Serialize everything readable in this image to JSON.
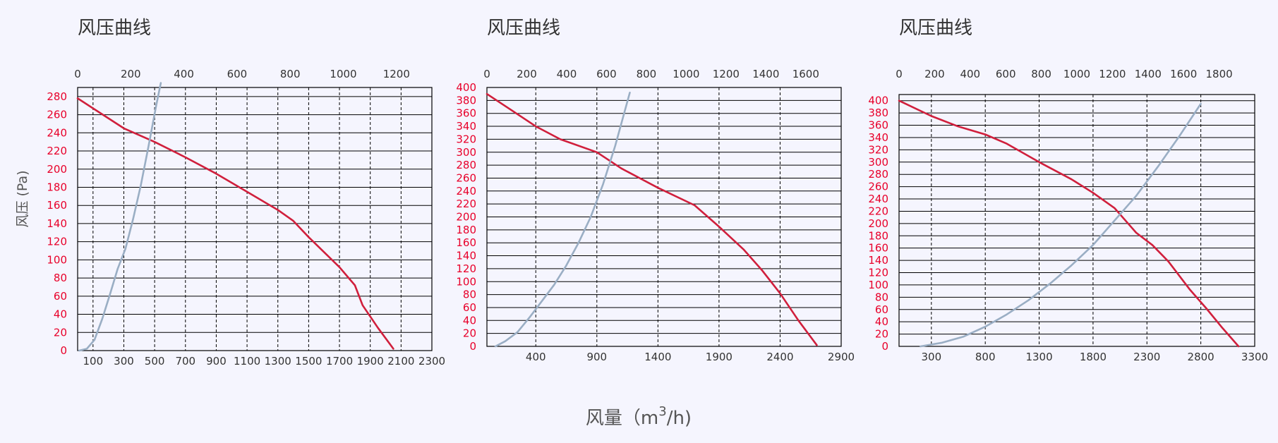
{
  "colors": {
    "background": "#f5f5fe",
    "pressure_curve": "#d01f3c",
    "system_curve": "#9aaec4",
    "y_ticks": "#e8002a",
    "grid": "#000000",
    "text": "#333333"
  },
  "y_axis_label": "风压 (Pa)",
  "x_axis_label": "风量（m",
  "x_axis_label_sup": "3",
  "x_axis_label_tail": "/h)",
  "chart_data": [
    {
      "type": "line",
      "title": "风压曲线",
      "ylabel": "风压 (Pa)",
      "xlabel": "风量（m3/h)",
      "ylim": [
        0,
        290
      ],
      "y_ticks": [
        0,
        20,
        40,
        60,
        80,
        100,
        120,
        140,
        160,
        180,
        200,
        220,
        240,
        260,
        280
      ],
      "bottom_xlim": [
        0,
        2300
      ],
      "bottom_ticks": [
        "100",
        "300",
        "500",
        "700",
        "900",
        "1100",
        "1300",
        "1500",
        "1700",
        "1900",
        "2100",
        "2300"
      ],
      "bottom_tick_values": [
        100,
        300,
        500,
        700,
        900,
        1100,
        1300,
        1500,
        1700,
        1900,
        2100,
        2300
      ],
      "top_ticks": [
        "0",
        "200",
        "400",
        "600",
        "800",
        "1000",
        "1200"
      ],
      "top_tick_values": [
        0,
        200,
        400,
        600,
        800,
        1000,
        1200
      ],
      "vertical_dashed_gridlines": [
        100,
        300,
        500,
        700,
        900,
        1100,
        1300,
        1500,
        1700,
        1900,
        2100
      ],
      "grid": true,
      "series": [
        {
          "role": "fan-pressure-curve",
          "x": [
            0,
            300,
            500,
            700,
            900,
            1100,
            1300,
            1400,
            1500,
            1700,
            1800,
            1850,
            1950,
            2050
          ],
          "y": [
            278,
            245,
            230,
            213,
            195,
            175,
            155,
            143,
            125,
            92,
            72,
            50,
            25,
            2
          ]
        },
        {
          "role": "system-resistance-curve",
          "x": [
            10,
            60,
            110,
            160,
            210,
            260,
            310,
            360,
            410,
            460,
            510,
            540
          ],
          "y": [
            0,
            2,
            12,
            35,
            62,
            90,
            112,
            145,
            182,
            225,
            270,
            295
          ]
        }
      ]
    },
    {
      "type": "line",
      "title": "风压曲线",
      "ylabel": "风压 (Pa)",
      "xlabel": "风量（m3/h)",
      "ylim": [
        0,
        400
      ],
      "y_ticks": [
        0,
        20,
        40,
        60,
        80,
        100,
        120,
        140,
        160,
        180,
        200,
        220,
        240,
        260,
        280,
        300,
        320,
        340,
        360,
        380,
        400
      ],
      "bottom_xlim": [
        0,
        2900
      ],
      "bottom_ticks": [
        "400",
        "900",
        "1400",
        "1900",
        "2400",
        "2900"
      ],
      "bottom_tick_values": [
        400,
        900,
        1400,
        1900,
        2400,
        2900
      ],
      "top_ticks": [
        "0",
        "200",
        "400",
        "600",
        "800",
        "1000",
        "1200",
        "1400",
        "1600"
      ],
      "top_tick_values": [
        0,
        200,
        400,
        600,
        800,
        1000,
        1200,
        1400,
        1600
      ],
      "vertical_dashed_gridlines": [
        400,
        900,
        1400,
        1900,
        2400
      ],
      "grid": true,
      "series": [
        {
          "role": "fan-pressure-curve",
          "x": [
            0,
            200,
            400,
            600,
            900,
            1100,
            1400,
            1700,
            1900,
            2100,
            2250,
            2400,
            2550,
            2700
          ],
          "y": [
            390,
            365,
            340,
            320,
            300,
            275,
            245,
            218,
            185,
            150,
            118,
            82,
            40,
            2
          ]
        },
        {
          "role": "system-resistance-curve",
          "x": [
            70,
            150,
            250,
            350,
            450,
            550,
            650,
            750,
            850,
            950,
            1050,
            1170
          ],
          "y": [
            0,
            8,
            22,
            45,
            70,
            95,
            125,
            160,
            200,
            250,
            310,
            392
          ]
        }
      ]
    },
    {
      "type": "line",
      "title": "风压曲线",
      "ylabel": "风压 (Pa)",
      "xlabel": "风量（m3/h)",
      "ylim": [
        0,
        410
      ],
      "y_ticks": [
        0,
        20,
        40,
        60,
        80,
        100,
        120,
        140,
        160,
        180,
        200,
        220,
        240,
        260,
        280,
        300,
        320,
        340,
        360,
        380,
        400
      ],
      "bottom_xlim": [
        0,
        3300
      ],
      "bottom_ticks": [
        "300",
        "800",
        "1300",
        "1800",
        "2300",
        "2800",
        "3300"
      ],
      "bottom_tick_values": [
        300,
        800,
        1300,
        1800,
        2300,
        2800,
        3300
      ],
      "top_ticks": [
        "0",
        "200",
        "400",
        "600",
        "800",
        "1000",
        "1200",
        "1400",
        "1600",
        "1800"
      ],
      "top_tick_values": [
        0,
        200,
        400,
        600,
        800,
        1000,
        1200,
        1400,
        1600,
        1800
      ],
      "vertical_dashed_gridlines": [
        300,
        800,
        1300,
        1800,
        2300,
        2800
      ],
      "grid": true,
      "series": [
        {
          "role": "fan-pressure-curve",
          "x": [
            0,
            300,
            550,
            800,
            1000,
            1300,
            1600,
            1800,
            2000,
            2150,
            2200,
            2350,
            2500,
            2700,
            2850,
            3000,
            3150
          ],
          "y": [
            400,
            375,
            358,
            345,
            330,
            300,
            272,
            250,
            225,
            195,
            185,
            165,
            138,
            92,
            62,
            30,
            0
          ]
        },
        {
          "role": "system-resistance-curve",
          "x": [
            200,
            400,
            600,
            800,
            1000,
            1200,
            1400,
            1600,
            1800,
            2000,
            2200,
            2400,
            2600,
            2800
          ],
          "y": [
            0,
            6,
            16,
            32,
            52,
            75,
            102,
            132,
            165,
            205,
            245,
            292,
            342,
            395
          ]
        }
      ]
    }
  ]
}
